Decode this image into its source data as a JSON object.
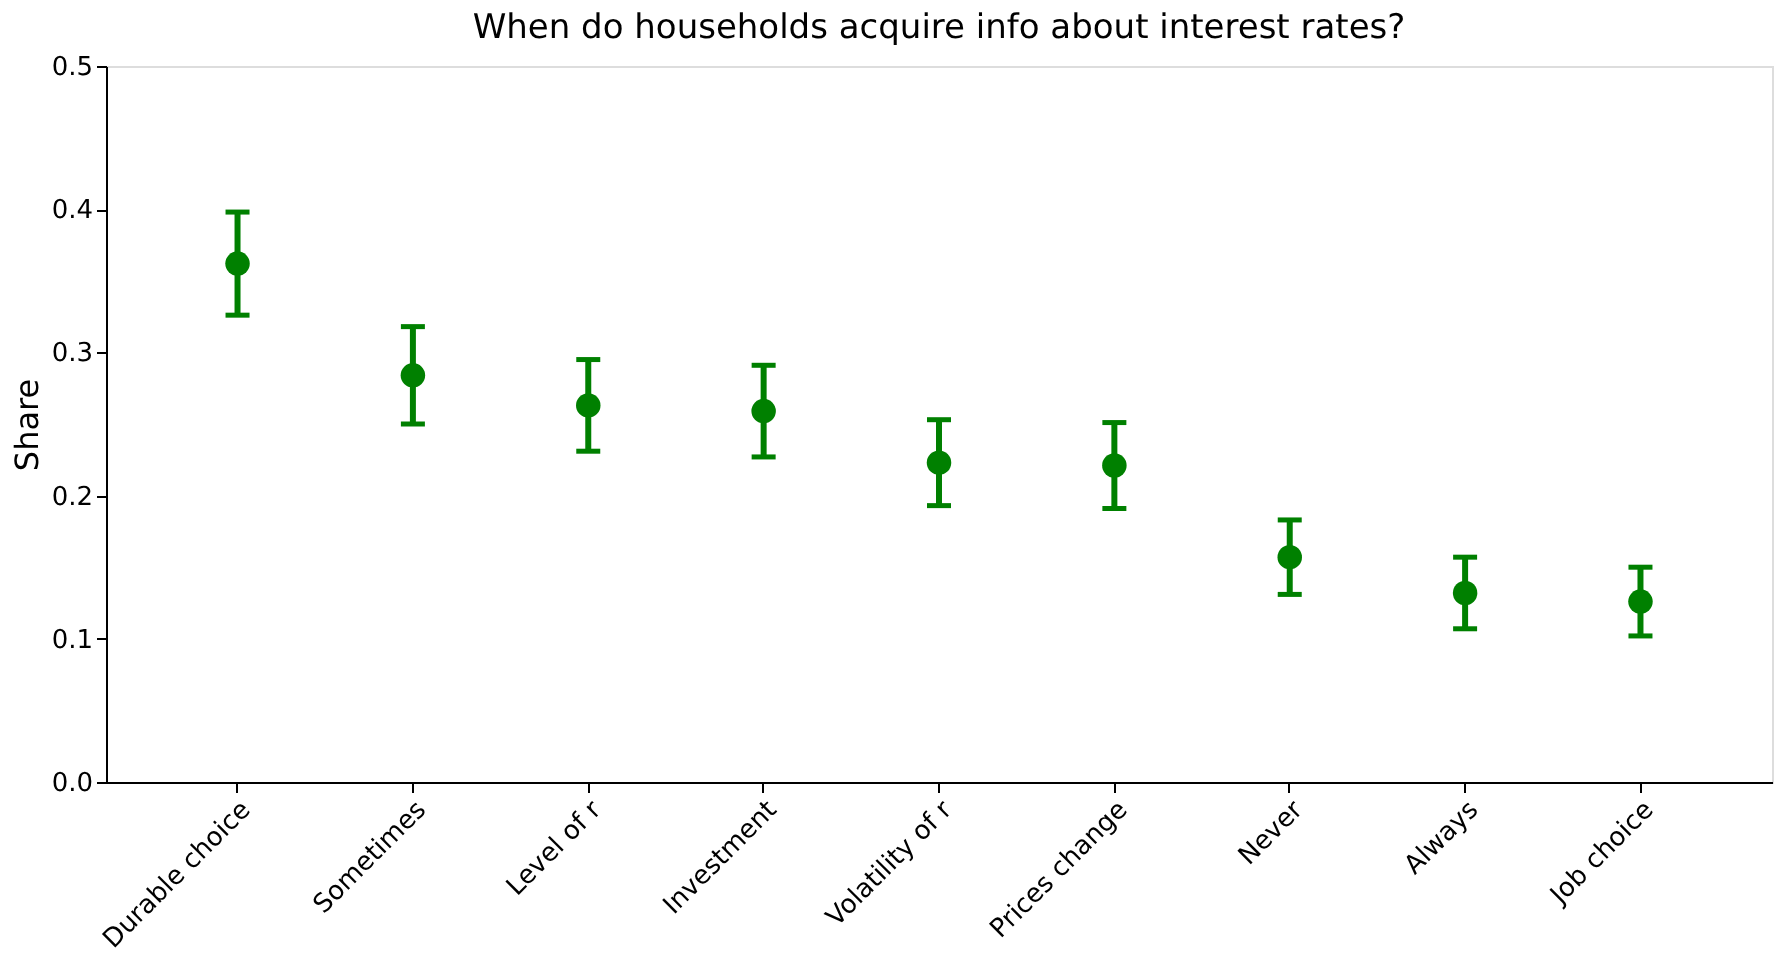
{
  "chart_data": {
    "type": "scatter",
    "title": "When do households acquire info about interest rates?",
    "ylabel": "Share",
    "categories": [
      "Durable choice",
      "Sometimes",
      "Level of r",
      "Investment",
      "Volatility of r",
      "Prices change",
      "Never",
      "Always",
      "Job choice"
    ],
    "series": [
      {
        "color": "#008000",
        "values": [
          0.362,
          0.284,
          0.263,
          0.259,
          0.223,
          0.221,
          0.157,
          0.132,
          0.126
        ],
        "errors": [
          0.036,
          0.034,
          0.032,
          0.032,
          0.03,
          0.03,
          0.026,
          0.025,
          0.024
        ]
      }
    ],
    "ylim": [
      0,
      0.5
    ],
    "yticks": [
      {
        "value": 0,
        "label": "0.0"
      },
      0.1,
      0.2,
      0.3,
      0.4,
      0.5
    ],
    "grid": false,
    "legend": false,
    "marker": "circle"
  }
}
